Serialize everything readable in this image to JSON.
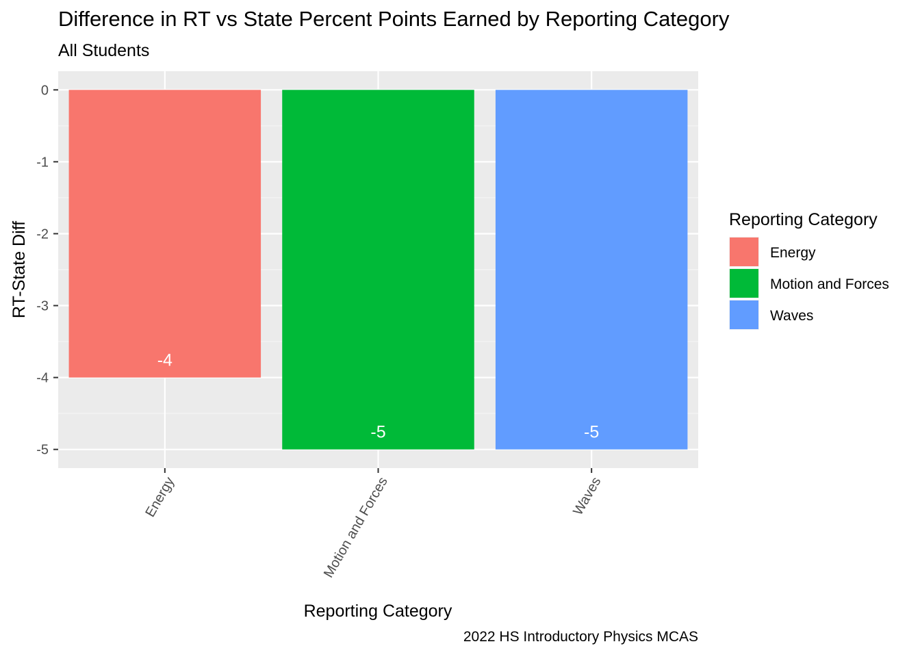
{
  "chart_data": {
    "type": "bar",
    "title": "Difference in RT vs State Percent Points Earned by Reporting Category",
    "subtitle": "All Students",
    "caption": "2022 HS Introductory Physics MCAS",
    "xlabel": "Reporting Category",
    "ylabel": "RT-State Diff",
    "categories": [
      "Energy",
      "Motion and Forces",
      "Waves"
    ],
    "values": [
      -4,
      -5,
      -5
    ],
    "data_labels": [
      "-4",
      "-5",
      "-5"
    ],
    "colors": [
      "#F8766D",
      "#00BA38",
      "#619CFF"
    ],
    "ylim": [
      -5.26,
      0.26
    ],
    "yticks": [
      0,
      -1,
      -2,
      -3,
      -4,
      -5
    ],
    "ytick_labels": [
      "0",
      "-1",
      "-2",
      "-3",
      "-4",
      "-5"
    ],
    "grid": true,
    "panel_background": "#EBEBEB",
    "legend": {
      "title": "Reporting Category",
      "placement": "right",
      "entries": [
        "Energy",
        "Motion and Forces",
        "Waves"
      ]
    }
  }
}
